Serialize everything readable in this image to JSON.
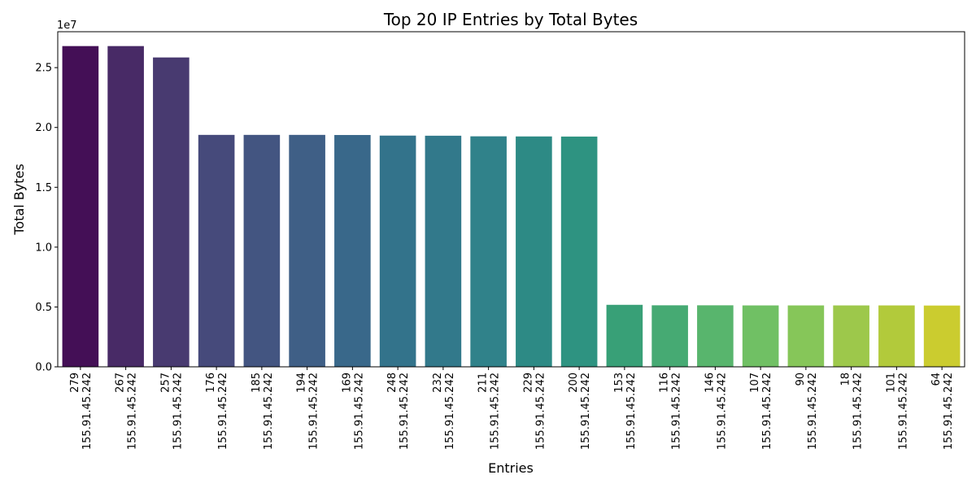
{
  "chart_data": {
    "type": "bar",
    "title": "Top 20 IP Entries by Total Bytes",
    "xlabel": "Entries",
    "ylabel": "Total Bytes",
    "scale_label": "1e7",
    "ylim": [
      0,
      28000000
    ],
    "yticks": [
      0,
      5000000,
      10000000,
      15000000,
      20000000,
      25000000
    ],
    "ytick_labels": [
      "0.0",
      "0.5",
      "1.0",
      "1.5",
      "2.0",
      "2.5"
    ],
    "grid": false,
    "categories": [
      {
        "id": "279",
        "ip": "155.91.45.242"
      },
      {
        "id": "267",
        "ip": "155.91.45.242"
      },
      {
        "id": "257",
        "ip": "155.91.45.242"
      },
      {
        "id": "176",
        "ip": "155.91.45.242"
      },
      {
        "id": "185",
        "ip": "155.91.45.242"
      },
      {
        "id": "194",
        "ip": "155.91.45.242"
      },
      {
        "id": "169",
        "ip": "155.91.45.242"
      },
      {
        "id": "248",
        "ip": "155.91.45.242"
      },
      {
        "id": "232",
        "ip": "155.91.45.242"
      },
      {
        "id": "211",
        "ip": "155.91.45.242"
      },
      {
        "id": "229",
        "ip": "155.91.45.242"
      },
      {
        "id": "200",
        "ip": "155.91.45.242"
      },
      {
        "id": "153",
        "ip": "155.91.45.242"
      },
      {
        "id": "116",
        "ip": "155.91.45.242"
      },
      {
        "id": "146",
        "ip": "155.91.45.242"
      },
      {
        "id": "107",
        "ip": "155.91.45.242"
      },
      {
        "id": "90",
        "ip": "155.91.45.242"
      },
      {
        "id": "18",
        "ip": "155.91.45.242"
      },
      {
        "id": "101",
        "ip": "155.91.45.242"
      },
      {
        "id": "64",
        "ip": "155.91.45.242"
      }
    ],
    "values": [
      26800000,
      26800000,
      25850000,
      19380000,
      19380000,
      19380000,
      19370000,
      19320000,
      19310000,
      19260000,
      19250000,
      19240000,
      5180000,
      5140000,
      5140000,
      5130000,
      5130000,
      5130000,
      5130000,
      5120000
    ],
    "colors": [
      "#440f56",
      "#482a66",
      "#483a70",
      "#464a7b",
      "#435581",
      "#3f5f86",
      "#39688a",
      "#33738b",
      "#32798b",
      "#30828a",
      "#2d8a85",
      "#2e9381",
      "#38a077",
      "#46aa73",
      "#58b56d",
      "#70c064",
      "#86c659",
      "#9dc84b",
      "#b2ca3b",
      "#cbcc2f"
    ]
  }
}
